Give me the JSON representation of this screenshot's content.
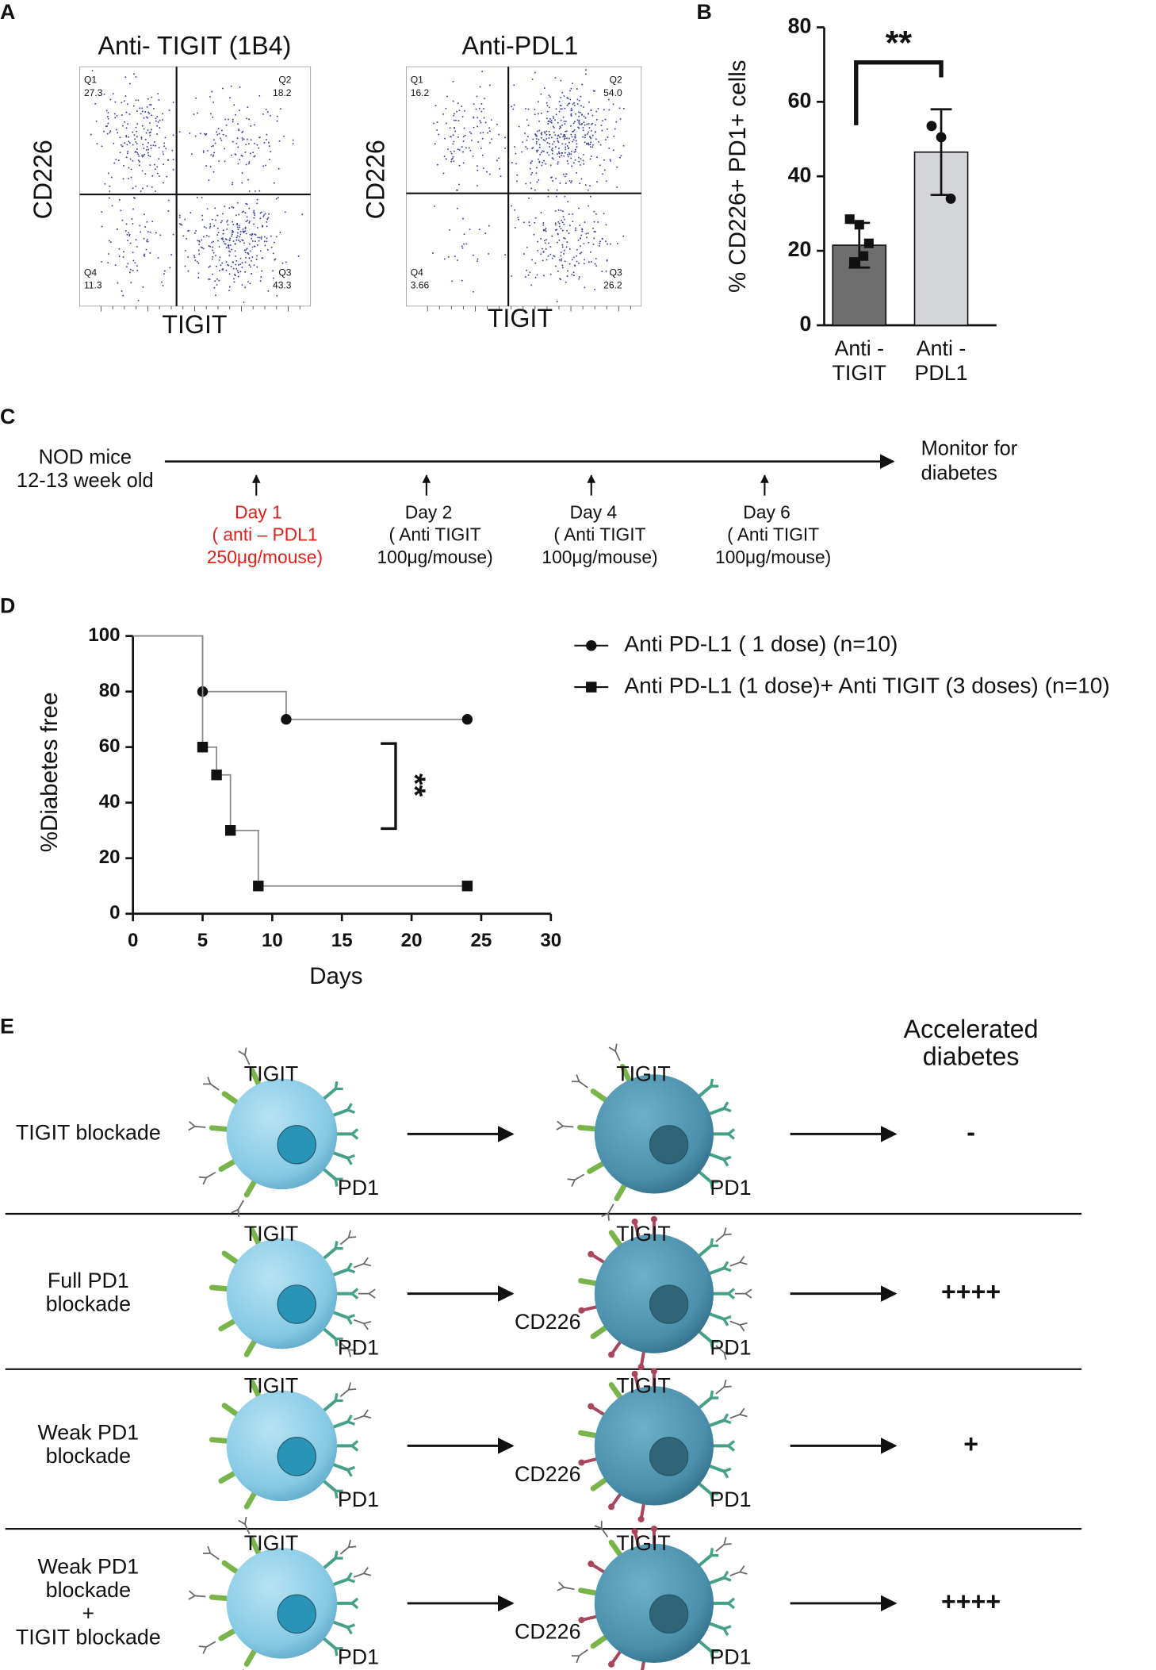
{
  "panel_labels": [
    "A",
    "B",
    "C",
    "D",
    "E"
  ],
  "flow_plots": [
    {
      "title": "Anti- TIGIT (1B4)",
      "x_label": "TIGIT",
      "y_label": "CD226",
      "quadrants": [
        {
          "name": "Q1",
          "value": "27.3"
        },
        {
          "name": "Q2",
          "value": "18.2"
        },
        {
          "name": "Q4",
          "value": "11.3"
        },
        {
          "name": "Q3",
          "value": "43.3"
        }
      ]
    },
    {
      "title": "Anti-PDL1",
      "x_label": "TIGIT",
      "y_label": "CD226",
      "quadrants": [
        {
          "name": "Q1",
          "value": "16.2"
        },
        {
          "name": "Q2",
          "value": "54.0"
        },
        {
          "name": "Q4",
          "value": "3.66"
        },
        {
          "name": "Q3",
          "value": "26.2"
        }
      ]
    }
  ],
  "chart_data": [
    {
      "type": "bar",
      "y_label": "% CD226+ PD1+ cells",
      "categories": [
        [
          "Anti -",
          "TIGIT"
        ],
        [
          "Anti -",
          "PDL1"
        ]
      ],
      "values": [
        21.5,
        46.5
      ],
      "errors": [
        6,
        11.5
      ],
      "points": [
        [
          28.5,
          27,
          22,
          17,
          18.6
        ],
        [
          53.5,
          50.5,
          34
        ]
      ],
      "point_markers": [
        "square",
        "circle"
      ],
      "colors": [
        "#6e6e6e",
        "#d4d5d9"
      ],
      "ylim": [
        0,
        80
      ],
      "yticks": [
        0,
        20,
        40,
        60,
        80
      ],
      "annotation": "**"
    },
    {
      "type": "line",
      "x_label": "Days",
      "y_label": "%Diabetes free",
      "series": [
        {
          "name": "Anti PD-L1 ( 1 dose)  (n=10)",
          "marker": "circle",
          "color": "#111",
          "x": [
            5,
            11,
            24
          ],
          "values": [
            80,
            70,
            70
          ]
        },
        {
          "name": "Anti PD-L1 (1 dose)+ Anti TIGIT (3 doses) (n=10)",
          "marker": "square",
          "color": "#111",
          "x": [
            5,
            6,
            7,
            9,
            24
          ],
          "values": [
            60,
            50,
            30,
            10,
            10
          ]
        }
      ],
      "line_color": "#888",
      "xlim": [
        0,
        30
      ],
      "xticks": [
        0,
        5,
        10,
        15,
        20,
        25,
        30
      ],
      "ylim": [
        0,
        100
      ],
      "yticks": [
        0,
        20,
        40,
        60,
        80,
        100
      ],
      "annotation": "**"
    }
  ],
  "timeline": {
    "start": [
      "NOD mice",
      "12-13 week old"
    ],
    "end": [
      "Monitor for",
      "diabetes"
    ],
    "events": [
      {
        "day": "Day 1",
        "lines": [
          "( anti – PDL1",
          "250μg/mouse)"
        ],
        "color": "#e0201b"
      },
      {
        "day": "Day 2",
        "lines": [
          "( Anti TIGIT",
          "100μg/mouse)"
        ],
        "color": "#111"
      },
      {
        "day": "Day 4",
        "lines": [
          "( Anti TIGIT",
          "100μg/mouse)"
        ],
        "color": "#111"
      },
      {
        "day": "Day 6",
        "lines": [
          "( Anti TIGIT",
          "100μg/mouse)"
        ],
        "color": "#111"
      }
    ]
  },
  "schematic": {
    "header": [
      "Accelerated",
      "diabetes"
    ],
    "rows": [
      {
        "label": [
          "TIGIT blockade"
        ],
        "cell1": {
          "tigit": "TIGIT",
          "pd1": "PD1"
        },
        "cell2": {
          "tigit": "TIGIT",
          "pd1": "PD1"
        },
        "result": "-"
      },
      {
        "label": [
          "Full PD1",
          "blockade"
        ],
        "cell1": {
          "tigit": "TIGIT",
          "pd1": "PD1"
        },
        "cell2": {
          "tigit": "TIGIT",
          "cd226": "CD226",
          "pd1": "PD1"
        },
        "result": "++++"
      },
      {
        "label": [
          "Weak PD1",
          "blockade"
        ],
        "cell1": {
          "tigit": "TIGIT",
          "pd1": "PD1"
        },
        "cell2": {
          "tigit": "TIGIT",
          "cd226": "CD226",
          "pd1": "PD1"
        },
        "result": "+"
      },
      {
        "label": [
          "Weak PD1",
          "blockade",
          "+",
          "TIGIT blockade"
        ],
        "cell1": {
          "tigit": "TIGIT",
          "pd1": "PD1"
        },
        "cell2": {
          "tigit": "TIGIT",
          "cd226": "CD226",
          "pd1": "PD1"
        },
        "result": "++++"
      }
    ]
  }
}
